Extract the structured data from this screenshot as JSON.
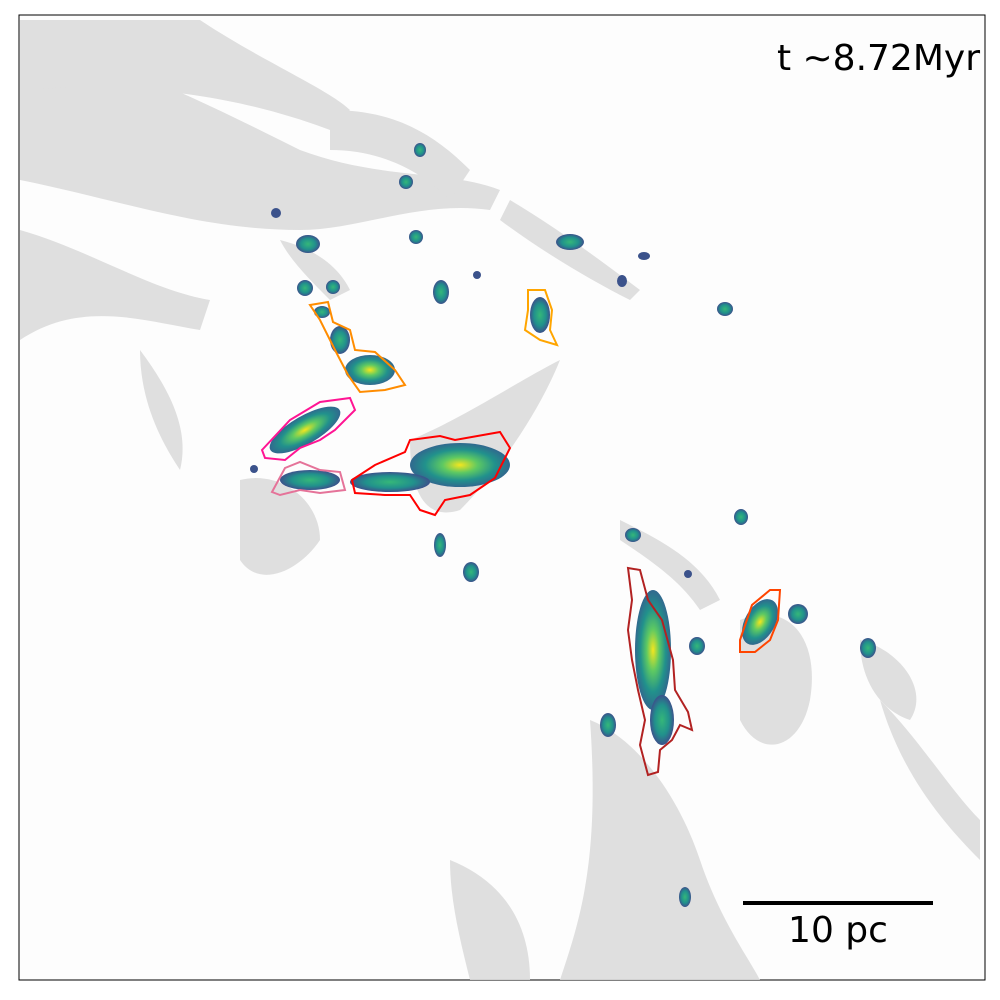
{
  "annotations": {
    "time": "t  ∼8.72Myr",
    "scale_bar": "10 pc"
  }
}
